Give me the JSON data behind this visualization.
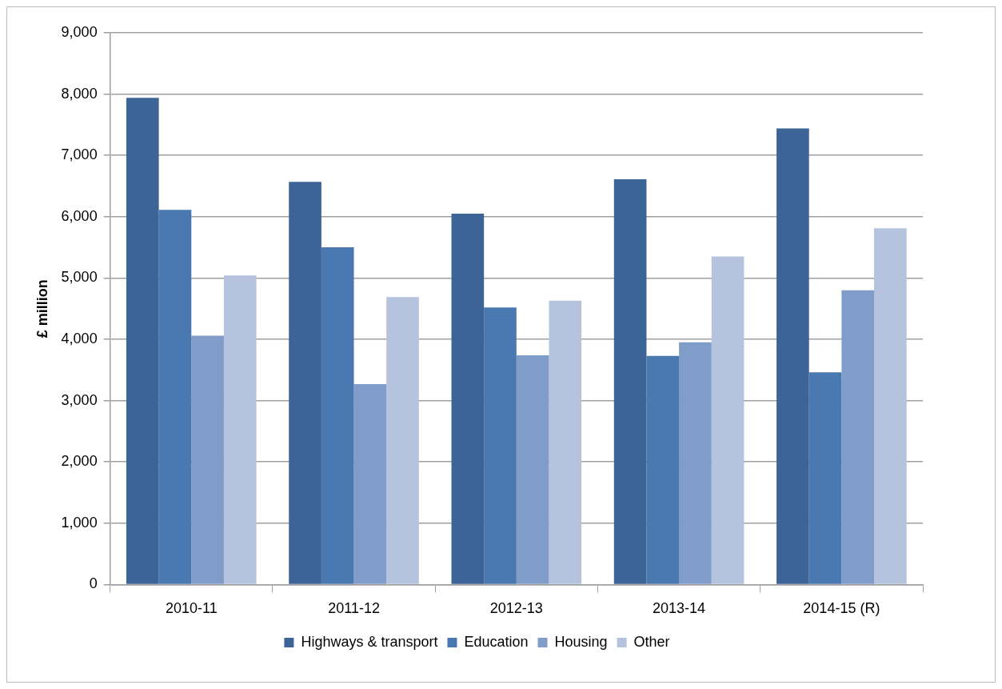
{
  "chart_data": {
    "type": "bar",
    "ylabel": "£ million",
    "categories": [
      "2010-11",
      "2011-12",
      "2012-13",
      "2013-14",
      "2014-15 (R)"
    ],
    "series": [
      {
        "name": "Highways & transport",
        "color": "#3d6496",
        "values": [
          7940,
          6570,
          6050,
          6610,
          7440
        ]
      },
      {
        "name": "Education",
        "color": "#4a78b0",
        "values": [
          6110,
          5500,
          4520,
          3730,
          3460
        ]
      },
      {
        "name": "Housing",
        "color": "#809cc8",
        "values": [
          4060,
          3270,
          3740,
          3950,
          4800
        ]
      },
      {
        "name": "Other",
        "color": "#b5c3de",
        "values": [
          5040,
          4690,
          4630,
          5350,
          5810
        ]
      }
    ],
    "ylim": [
      0,
      9000
    ],
    "yticks": [
      {
        "value": 0,
        "label": "0"
      },
      {
        "value": 1000,
        "label": "1,000"
      },
      {
        "value": 2000,
        "label": "2,000"
      },
      {
        "value": 3000,
        "label": "3,000"
      },
      {
        "value": 4000,
        "label": "4,000"
      },
      {
        "value": 5000,
        "label": "5,000"
      },
      {
        "value": 6000,
        "label": "6,000"
      },
      {
        "value": 7000,
        "label": "7,000"
      },
      {
        "value": 8000,
        "label": "8,000"
      },
      {
        "value": 9000,
        "label": "9,000"
      }
    ],
    "grid": "y",
    "legend": "bottom"
  }
}
